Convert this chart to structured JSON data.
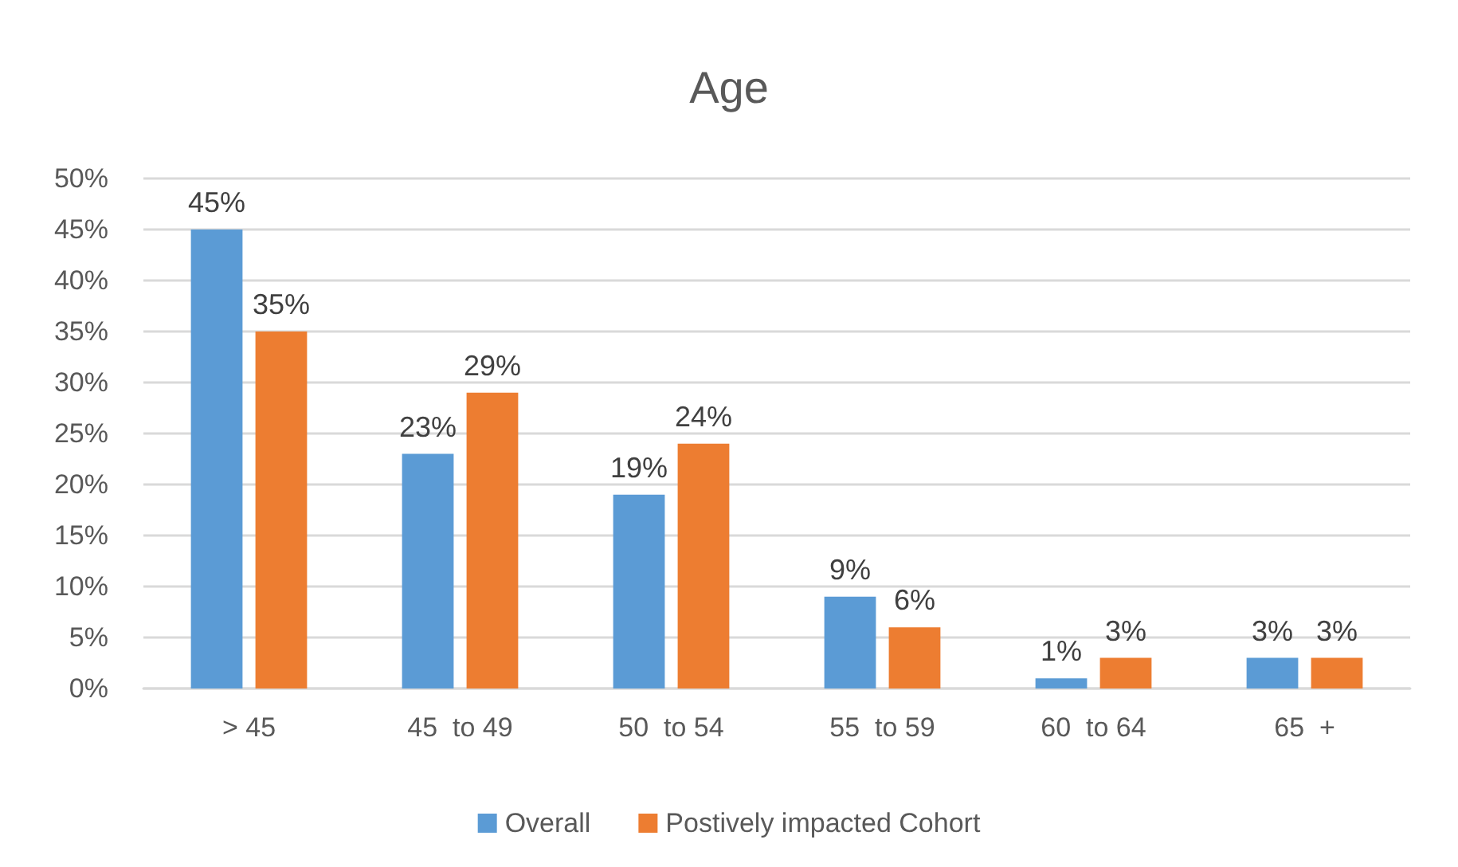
{
  "chart_data": {
    "type": "bar",
    "title": "Age",
    "categories": [
      "> 45",
      "45  to 49",
      "50  to 54",
      "55  to 59",
      "60  to 64",
      "65  +"
    ],
    "series": [
      {
        "name": "Overall",
        "color": "#5b9bd5",
        "values": [
          45,
          23,
          19,
          9,
          1,
          3
        ],
        "value_labels": [
          "45%",
          "23%",
          "19%",
          "9%",
          "1%",
          "3%"
        ]
      },
      {
        "name": "Postively impacted Cohort",
        "color": "#ed7d31",
        "values": [
          35,
          29,
          24,
          6,
          3,
          3
        ],
        "value_labels": [
          "35%",
          "29%",
          "24%",
          "6%",
          "3%",
          "3%"
        ]
      }
    ],
    "ylim": [
      0,
      50
    ],
    "yticks": [
      {
        "value": 0,
        "label": "0%"
      },
      {
        "value": 5,
        "label": "5%"
      },
      {
        "value": 10,
        "label": "10%"
      },
      {
        "value": 15,
        "label": "15%"
      },
      {
        "value": 20,
        "label": "20%"
      },
      {
        "value": 25,
        "label": "25%"
      },
      {
        "value": 30,
        "label": "30%"
      },
      {
        "value": 35,
        "label": "35%"
      },
      {
        "value": 40,
        "label": "40%"
      },
      {
        "value": 45,
        "label": "45%"
      },
      {
        "value": 50,
        "label": "50%"
      }
    ],
    "grid": "y",
    "legend": "bottom"
  }
}
